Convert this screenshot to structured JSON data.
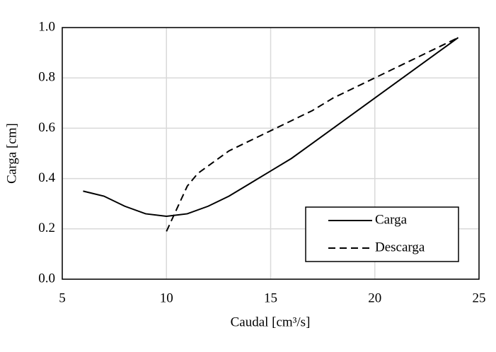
{
  "chart_data": {
    "type": "line",
    "xlabel": "Caudal [cm³/s]",
    "ylabel": "Carga [cm]",
    "xlim": [
      5,
      25
    ],
    "xticks": [
      5,
      10,
      15,
      20,
      25
    ],
    "ylim": [
      0,
      1
    ],
    "yticks": [
      {
        "value": 0,
        "label": "0.0"
      },
      0.2,
      0.4,
      0.6,
      0.8,
      {
        "value": 1,
        "label": "1.0"
      }
    ],
    "grid": true,
    "legend": "lower right",
    "series": [
      {
        "name": "Carga",
        "color": "#000000",
        "dash": "solid",
        "x": [
          6,
          7,
          8,
          9,
          10,
          11,
          12,
          13,
          14,
          15,
          16,
          17,
          18,
          19,
          20,
          21,
          22,
          23,
          24
        ],
        "values": [
          0.35,
          0.33,
          0.29,
          0.26,
          0.25,
          0.26,
          0.29,
          0.33,
          0.38,
          0.43,
          0.48,
          0.54,
          0.6,
          0.66,
          0.72,
          0.78,
          0.84,
          0.9,
          0.96
        ]
      },
      {
        "name": "Descarga",
        "color": "#000000",
        "dash": "dashed",
        "x": [
          10,
          10.5,
          11,
          11.5,
          12,
          13,
          14,
          15,
          16,
          17,
          18,
          19,
          20,
          21,
          22,
          23,
          24
        ],
        "values": [
          0.19,
          0.28,
          0.37,
          0.42,
          0.45,
          0.51,
          0.55,
          0.59,
          0.63,
          0.67,
          0.72,
          0.76,
          0.8,
          0.84,
          0.88,
          0.92,
          0.96
        ]
      }
    ]
  }
}
